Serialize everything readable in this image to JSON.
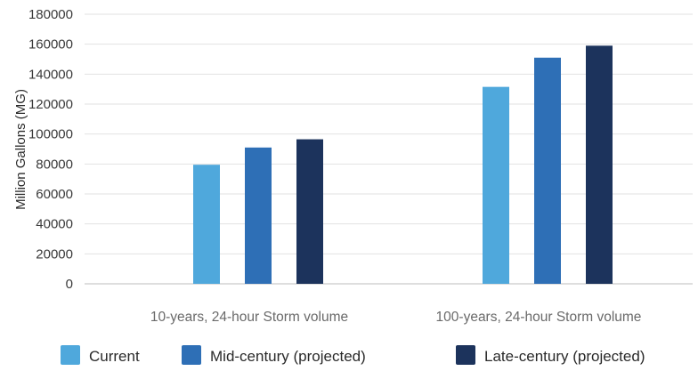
{
  "chart_data": {
    "type": "bar",
    "title": "",
    "xlabel": "",
    "ylabel": "Million Gallons (MG)",
    "ylim": [
      0,
      180000
    ],
    "yticks": [
      0,
      20000,
      40000,
      60000,
      80000,
      100000,
      120000,
      140000,
      160000,
      180000
    ],
    "grid": true,
    "legend_position": "bottom",
    "categories": [
      "10-years, 24-hour Storm volume",
      "100-years, 24-hour Storm volume"
    ],
    "series": [
      {
        "name": "Current",
        "color": "#4fa8dc",
        "values": [
          79500,
          131500
        ]
      },
      {
        "name": "Mid-century (projected)",
        "color": "#2e6fb6",
        "values": [
          91000,
          151000
        ]
      },
      {
        "name": "Late-century (projected)",
        "color": "#1c335c",
        "values": [
          96500,
          159000
        ]
      }
    ]
  }
}
